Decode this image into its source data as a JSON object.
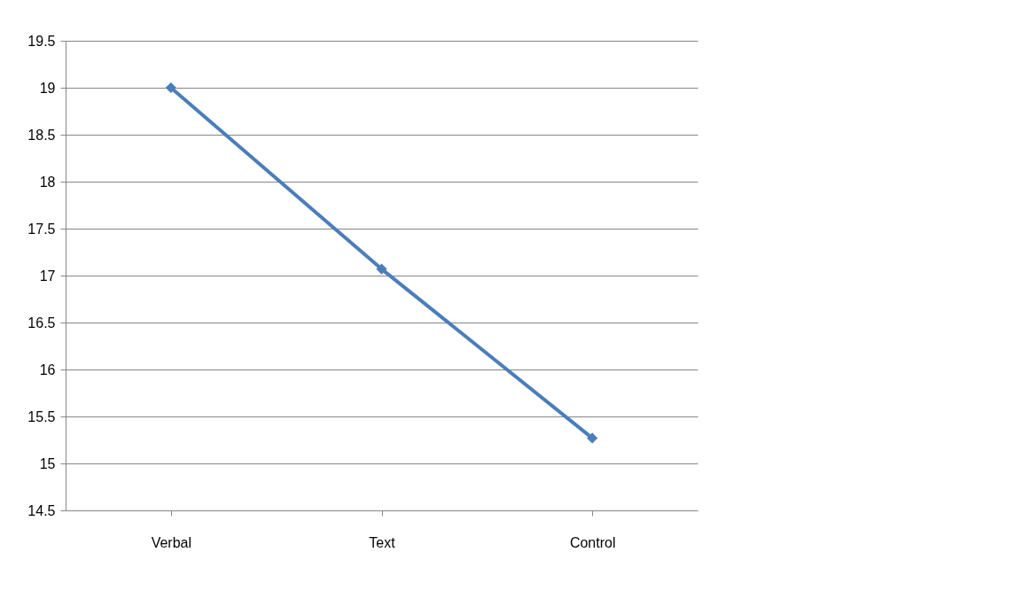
{
  "chart_data": {
    "type": "line",
    "categories": [
      "Verbal",
      "Text",
      "Control"
    ],
    "series": [
      {
        "color": "#4a7ebb",
        "values": [
          19,
          17.07,
          15.27
        ]
      }
    ],
    "ylim": [
      14.5,
      19.5
    ],
    "yticks": [
      14.5,
      15,
      15.5,
      16,
      16.5,
      17,
      17.5,
      18,
      18.5,
      19,
      19.5
    ],
    "grid": "y",
    "marker": "diamond",
    "legend": false
  }
}
